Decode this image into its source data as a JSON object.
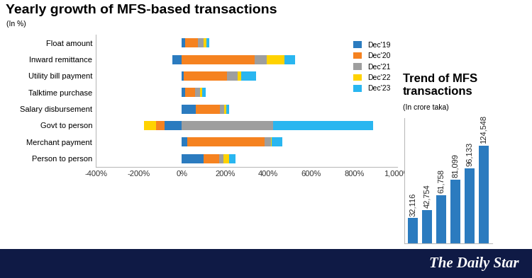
{
  "chart_data": [
    {
      "type": "bar",
      "title": "Yearly growth of MFS-based transactions",
      "subtitle": "(In %)",
      "orientation": "horizontal",
      "stacked": true,
      "categories": [
        "Float amount",
        "Inward remittance",
        "Utility bill payment",
        "Talktime purchase",
        "Salary disbursement",
        "Govt to person",
        "Merchant payment",
        "Person to person"
      ],
      "series": [
        {
          "name": "Dec'19",
          "color": "#2b7bbf",
          "values": [
            15,
            -45,
            9,
            15,
            64,
            -82,
            24,
            100
          ]
        },
        {
          "name": "Dec'20",
          "color": "#f58220",
          "values": [
            60,
            336,
            200,
            45,
            112,
            -39,
            360,
            73
          ]
        },
        {
          "name": "Dec'21",
          "color": "#9e9e9e",
          "values": [
            25,
            58,
            48,
            24,
            21,
            424,
            30,
            18
          ]
        },
        {
          "name": "Dec'22",
          "color": "#ffd200",
          "values": [
            12,
            82,
            18,
            9,
            9,
            -55,
            3,
            27
          ]
        },
        {
          "name": "Dec'23",
          "color": "#29b6f0",
          "values": [
            15,
            48,
            70,
            18,
            12,
            464,
            48,
            30
          ]
        }
      ],
      "xlim": [
        -400,
        1000
      ],
      "xticks": [
        {
          "value": -400,
          "label": "-400%"
        },
        {
          "value": -200,
          "label": "-200%"
        },
        {
          "value": 0,
          "label": "0%"
        },
        {
          "value": 200,
          "label": "200%"
        },
        {
          "value": 400,
          "label": "400%"
        },
        {
          "value": 600,
          "label": "600%"
        },
        {
          "value": 800,
          "label": "800%"
        },
        {
          "value": 1000,
          "label": "1,000%"
        }
      ],
      "legend": "upper right"
    },
    {
      "type": "bar",
      "title": "Trend of MFS transactions",
      "subtitle": "(In crore taka)",
      "categories": [
        null,
        null,
        null,
        null,
        null,
        null
      ],
      "values": [
        32116,
        42754,
        61758,
        81099,
        96133,
        124548
      ],
      "value_labels": [
        "32,116",
        "42,754",
        "61,758",
        "81,099",
        "96,133",
        "124,548"
      ],
      "data_labels": true,
      "color": "#2b7bbf",
      "ylim": [
        0,
        160000
      ],
      "tick_labels": false
    }
  ],
  "footer": "The Daily Star"
}
